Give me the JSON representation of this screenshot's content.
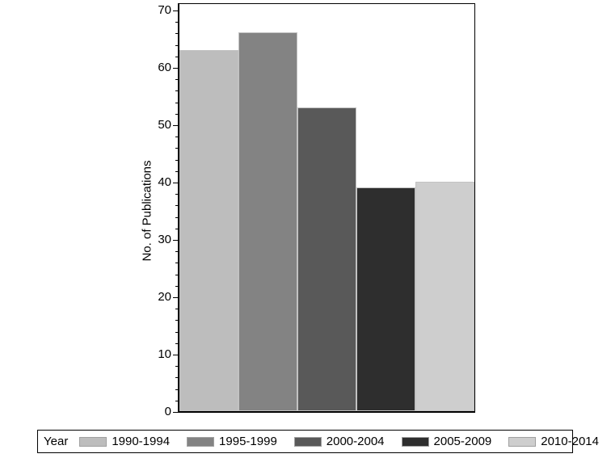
{
  "chart_data": {
    "type": "bar",
    "categories": [
      "1990-1994",
      "1995-1999",
      "2000-2004",
      "2005-2009",
      "2010-2014"
    ],
    "values": [
      63,
      66,
      53,
      39,
      40
    ],
    "colors": [
      "#bdbdbd",
      "#838383",
      "#595959",
      "#2e2e2e",
      "#cecece"
    ],
    "bar_outline_color": "#c2c2c2",
    "title": "",
    "xlabel": "",
    "ylabel": "No. of Publications",
    "ylim": [
      0,
      70
    ],
    "y_major_tick_interval": 10,
    "y_minor_tick_interval": 2,
    "y_tick_labels": [
      "0",
      "10",
      "20",
      "30",
      "40",
      "50",
      "60",
      "70"
    ],
    "grid": "off",
    "legend_title": "Year",
    "legend_position": "bottom"
  }
}
